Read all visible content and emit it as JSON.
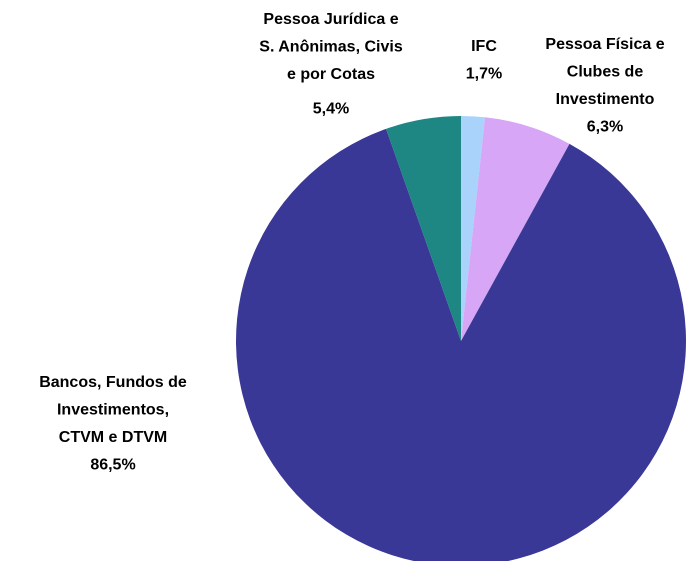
{
  "chart_data": {
    "type": "pie",
    "categories": [
      [
        "IFC"
      ],
      [
        "Pessoa Física e",
        "Clubes de",
        "Investimento"
      ],
      [
        "Bancos, Fundos de",
        "Investimentos,",
        "CTVM e DTVM"
      ],
      [
        "Pessoa Jurídica e",
        "S. Anônimas, Civis",
        "e por Cotas"
      ]
    ],
    "values": [
      1.7,
      6.3,
      86.5,
      5.4
    ],
    "value_labels": [
      "1,7%",
      "6,3%",
      "86,5%",
      "5,4%"
    ],
    "colors": [
      "#a9d3fa",
      "#d8a6f7",
      "#393896",
      "#1e8783"
    ]
  }
}
